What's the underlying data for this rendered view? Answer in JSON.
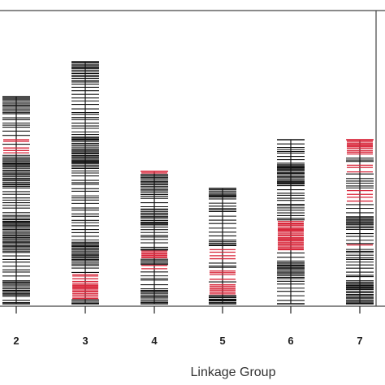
{
  "chart_data": {
    "type": "linkage-map",
    "xlabel": "Linkage Group",
    "categories": [
      "2",
      "3",
      "4",
      "5",
      "6",
      "7"
    ],
    "colors": {
      "marker": "#111111",
      "highlight": "#d8263a",
      "frame": "#444444",
      "axis": "#222222"
    },
    "groups": [
      {
        "name": "2",
        "length": 255,
        "dense": [
          [
            0,
            20
          ],
          [
            70,
            110
          ],
          [
            150,
            190
          ],
          [
            225,
            245
          ]
        ],
        "red": [
          [
            38,
            42
          ],
          [
            48,
            55
          ],
          [
            63,
            70
          ]
        ]
      },
      {
        "name": "3",
        "length": 298,
        "dense": [
          [
            0,
            20
          ],
          [
            90,
            130
          ],
          [
            220,
            250
          ],
          [
            270,
            298
          ]
        ],
        "red": [
          [
            262,
            292
          ]
        ]
      },
      {
        "name": "4",
        "length": 163,
        "dense": [
          [
            0,
            25
          ],
          [
            45,
            65
          ],
          [
            95,
            115
          ],
          [
            140,
            163
          ]
        ],
        "red": [
          [
            0,
            3
          ],
          [
            98,
            108
          ],
          [
            115,
            120
          ]
        ]
      },
      {
        "name": "5",
        "length": 142,
        "dense": [
          [
            0,
            10
          ],
          [
            60,
            70
          ],
          [
            120,
            142
          ]
        ],
        "red": [
          [
            75,
            90
          ],
          [
            100,
            112
          ],
          [
            118,
            130
          ]
        ]
      },
      {
        "name": "6",
        "length": 202,
        "dense": [
          [
            30,
            55
          ],
          [
            100,
            135
          ],
          [
            145,
            170
          ]
        ],
        "red": [
          [
            100,
            138
          ]
        ]
      },
      {
        "name": "7",
        "length": 202,
        "dense": [
          [
            0,
            10
          ],
          [
            90,
            110
          ],
          [
            175,
            202
          ]
        ],
        "red": [
          [
            0,
            18
          ],
          [
            30,
            40
          ],
          [
            60,
            78
          ],
          [
            128,
            135
          ]
        ]
      }
    ]
  }
}
